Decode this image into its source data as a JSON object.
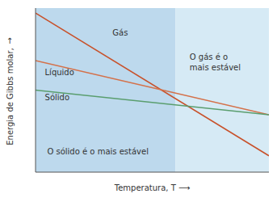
{
  "chart_data": {
    "type": "line",
    "x_label": "Temperatura, T ⟶",
    "y_label": "Energia de Gibbs molar, ↑",
    "x": [
      0,
      1
    ],
    "series": [
      {
        "name": "Gás",
        "color": "#c8512a",
        "values": [
          0.97,
          0.1
        ]
      },
      {
        "name": "Líquido",
        "color": "#d4714a",
        "values": [
          0.68,
          0.35
        ]
      },
      {
        "name": "Sólido",
        "color": "#5a9e6e",
        "values": [
          0.5,
          0.35
        ]
      }
    ],
    "regions": [
      {
        "x": [
          0,
          0.6
        ],
        "color": "#bdd9ed"
      },
      {
        "x": [
          0.6,
          1
        ],
        "color": "#d6eaf5"
      }
    ],
    "annotations": [
      {
        "text": "O sólido é o mais estável"
      },
      {
        "text": "O gás é o\nmais estável"
      }
    ],
    "xlim": [
      0,
      1
    ],
    "ylim": [
      0,
      1
    ],
    "tick_labels": false,
    "grid": false
  }
}
